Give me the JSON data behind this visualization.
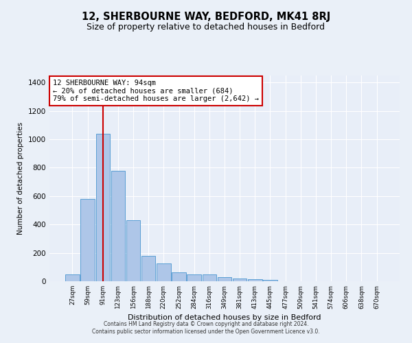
{
  "title": "12, SHERBOURNE WAY, BEDFORD, MK41 8RJ",
  "subtitle": "Size of property relative to detached houses in Bedford",
  "xlabel": "Distribution of detached houses by size in Bedford",
  "ylabel": "Number of detached properties",
  "bar_color": "#aec6e8",
  "bar_edge_color": "#5a9fd4",
  "bar_heights": [
    50,
    580,
    1040,
    780,
    430,
    180,
    125,
    65,
    50,
    50,
    30,
    20,
    15,
    10,
    0,
    0,
    0,
    0,
    0,
    0,
    0
  ],
  "x_labels": [
    "27sqm",
    "59sqm",
    "91sqm",
    "123sqm",
    "156sqm",
    "188sqm",
    "220sqm",
    "252sqm",
    "284sqm",
    "316sqm",
    "349sqm",
    "381sqm",
    "413sqm",
    "445sqm",
    "477sqm",
    "509sqm",
    "541sqm",
    "574sqm",
    "606sqm",
    "638sqm",
    "670sqm"
  ],
  "redline_index": 2,
  "annotation_text": "12 SHERBOURNE WAY: 94sqm\n← 20% of detached houses are smaller (684)\n79% of semi-detached houses are larger (2,642) →",
  "annotation_box_color": "white",
  "annotation_box_edge": "#cc0000",
  "redline_color": "#cc0000",
  "ylim": [
    0,
    1450
  ],
  "yticks": [
    0,
    200,
    400,
    600,
    800,
    1000,
    1200,
    1400
  ],
  "fig_bg_color": "#eaf0f8",
  "plot_bg_color": "#e8eef8",
  "footer1": "Contains HM Land Registry data © Crown copyright and database right 2024.",
  "footer2": "Contains public sector information licensed under the Open Government Licence v3.0.",
  "title_fontsize": 10.5,
  "subtitle_fontsize": 9
}
